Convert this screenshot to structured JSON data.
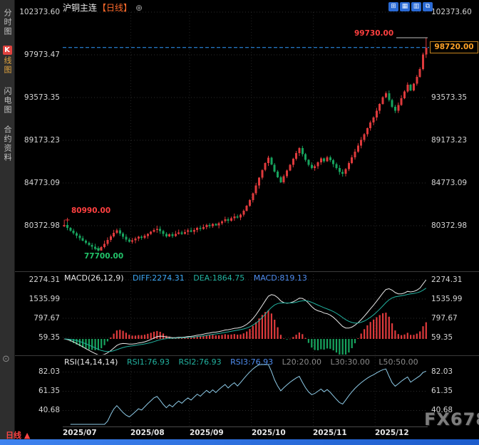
{
  "header": {
    "title": "沪铜主连",
    "period_tag": "【日线】",
    "add_icon": "⊕",
    "toolbar": [
      {
        "name": "grid-2x2",
        "glyph": "⊞"
      },
      {
        "name": "grid-3x3",
        "glyph": "▦"
      },
      {
        "name": "columns",
        "glyph": "▥"
      },
      {
        "name": "new-window",
        "glyph": "⧉"
      }
    ]
  },
  "sidebar": {
    "items": [
      {
        "label": "分时图"
      },
      {
        "badge": "K",
        "label": "线图",
        "selected": true
      },
      {
        "label": "闪电图"
      },
      {
        "label": "合约资料"
      }
    ],
    "tool_icon": "⊙"
  },
  "main_chart": {
    "y_axis": [
      "102373.60",
      "97973.47",
      "93573.35",
      "89173.23",
      "84773.09",
      "80372.98"
    ],
    "high_marker": "99730.00",
    "open_marker": "80990.00",
    "low_marker": "77700.00",
    "current_price": "98720.00"
  },
  "macd": {
    "label": "MACD(26,12,9)",
    "diff_label": "DIFF:2274.31",
    "dea_label": "DEA:1864.75",
    "macd_label": "MACD:819.13",
    "y_axis": [
      "2274.31",
      "1535.99",
      "797.67",
      "59.35"
    ]
  },
  "rsi": {
    "label": "RSI(14,14,14)",
    "rsi1_label": "RSI1:76.93",
    "rsi2_label": "RSI2:76.93",
    "rsi3_label": "RSI3:76.93",
    "l20_label": "L20:20.00",
    "l30_label": "L30:30.00",
    "l50_label": "L50:50.00",
    "y_axis": [
      "82.03",
      "61.35",
      "40.68"
    ]
  },
  "x_axis": {
    "months": [
      "2025/07",
      "2025/08",
      "2025/09",
      "2025/10",
      "2025/11",
      "2025/12"
    ],
    "month_start_indices": [
      0,
      22,
      41,
      61,
      81,
      101
    ]
  },
  "footer": {
    "period_selector": "日线",
    "period_arrow": "▲",
    "watermark": "FX678"
  },
  "colors": {
    "up": "#df3a3c",
    "down": "#17a35e",
    "diff_line": "#e8e8e8",
    "dea_line": "#22b2a0",
    "rsi_line": "#8ecbe8",
    "dashed_line": "#2f9bff",
    "marker_red": "#ff4040",
    "marker_green": "#22c36a",
    "tag_orange": "#ffa226",
    "toolbar_blue": "#2a6ad4"
  },
  "chart_data": {
    "type": "candlestick",
    "title": "沪铜主连 日线",
    "price_axis": {
      "max": 102373.6,
      "step": 4400.12,
      "min_label": 80372.98
    },
    "open_first": 80300,
    "closes": [
      80450,
      80150,
      79850,
      79600,
      79350,
      79100,
      78850,
      78600,
      78400,
      78200,
      77980,
      77820,
      78160,
      78520,
      78900,
      79280,
      79650,
      79900,
      79580,
      79230,
      78930,
      78730,
      78880,
      79060,
      79240,
      79130,
      79330,
      79540,
      79740,
      79950,
      80060,
      79820,
      79540,
      79290,
      79480,
      79320,
      79520,
      79680,
      79540,
      79730,
      79880,
      79760,
      79950,
      80140,
      80040,
      80240,
      80440,
      80330,
      80540,
      80420,
      80630,
      80830,
      81030,
      80890,
      81140,
      81340,
      81210,
      81510,
      81910,
      82410,
      83010,
      83710,
      84510,
      85310,
      86110,
      86810,
      87360,
      86660,
      85960,
      85360,
      84860,
      85460,
      86060,
      86660,
      87260,
      87860,
      88360,
      87760,
      87160,
      86660,
      86310,
      86510,
      86910,
      87310,
      87010,
      87410,
      87110,
      86710,
      86310,
      85910,
      85710,
      86210,
      86810,
      87410,
      88010,
      88610,
      89210,
      89810,
      90410,
      91010,
      91510,
      92210,
      92910,
      93610,
      94010,
      93310,
      92610,
      92210,
      92810,
      93510,
      94210,
      94910,
      94310,
      95010,
      95710,
      96510,
      98020,
      98720
    ],
    "overrides": {
      "0": {
        "high": 80990
      },
      "10": {
        "low": 77840
      },
      "11": {
        "low": 77700
      },
      "12": {
        "low": 77960
      },
      "117": {
        "high": 99730,
        "low": 97650
      }
    },
    "indicators": {
      "macd": [
        26,
        12,
        9
      ],
      "rsi": [
        14,
        14,
        14
      ]
    }
  }
}
